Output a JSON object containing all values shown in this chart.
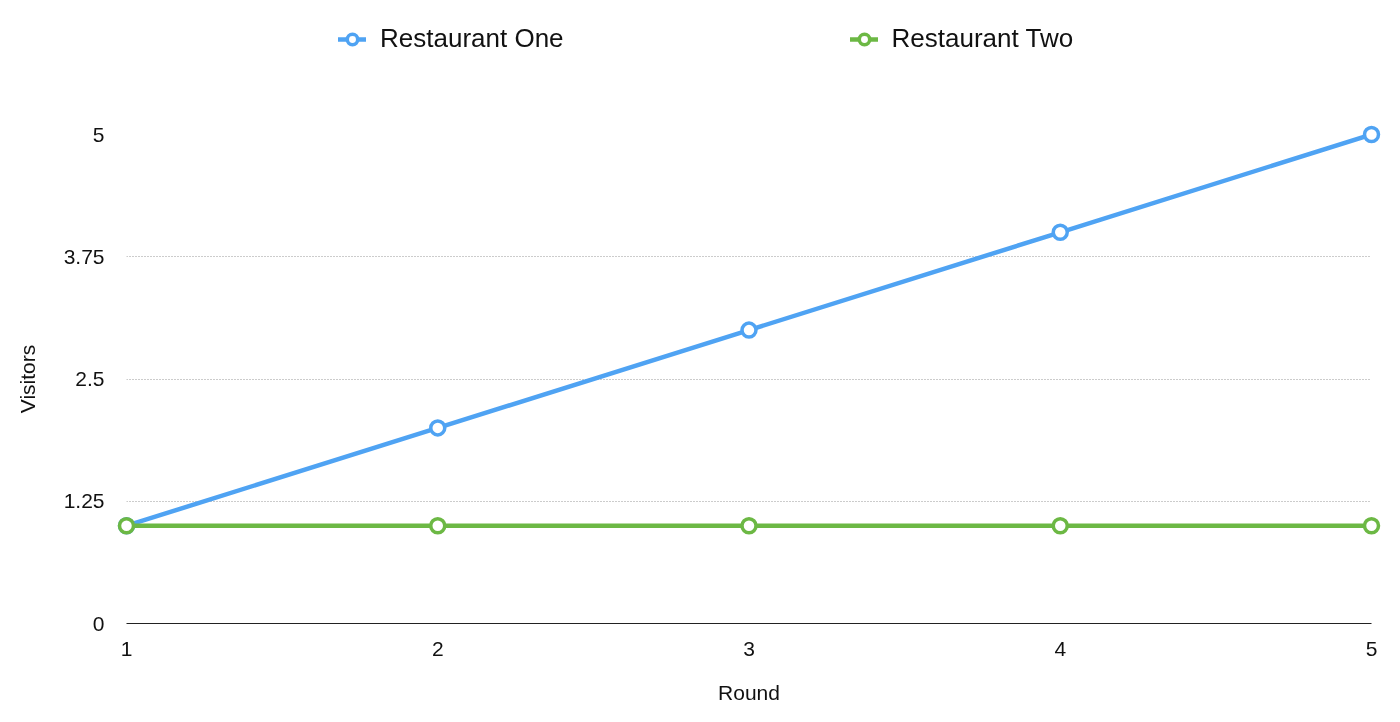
{
  "chart_data": {
    "type": "line",
    "x": [
      1,
      2,
      3,
      4,
      5
    ],
    "xlabel": "Round",
    "ylabel": "Visitors",
    "xlim": [
      1,
      5
    ],
    "xticks": [
      1,
      2,
      3,
      4,
      5
    ],
    "ylim": [
      0,
      5
    ],
    "yticks": [
      0,
      1.25,
      2.5,
      3.75,
      5
    ],
    "series": [
      {
        "name": "Restaurant One",
        "color": "#4fa3f3",
        "values": [
          1,
          2,
          3,
          4,
          5
        ]
      },
      {
        "name": "Restaurant Two",
        "color": "#6cb844",
        "values": [
          1,
          1,
          1,
          1,
          1
        ]
      }
    ],
    "grid": "y",
    "legend": "top",
    "marker": "circle"
  }
}
